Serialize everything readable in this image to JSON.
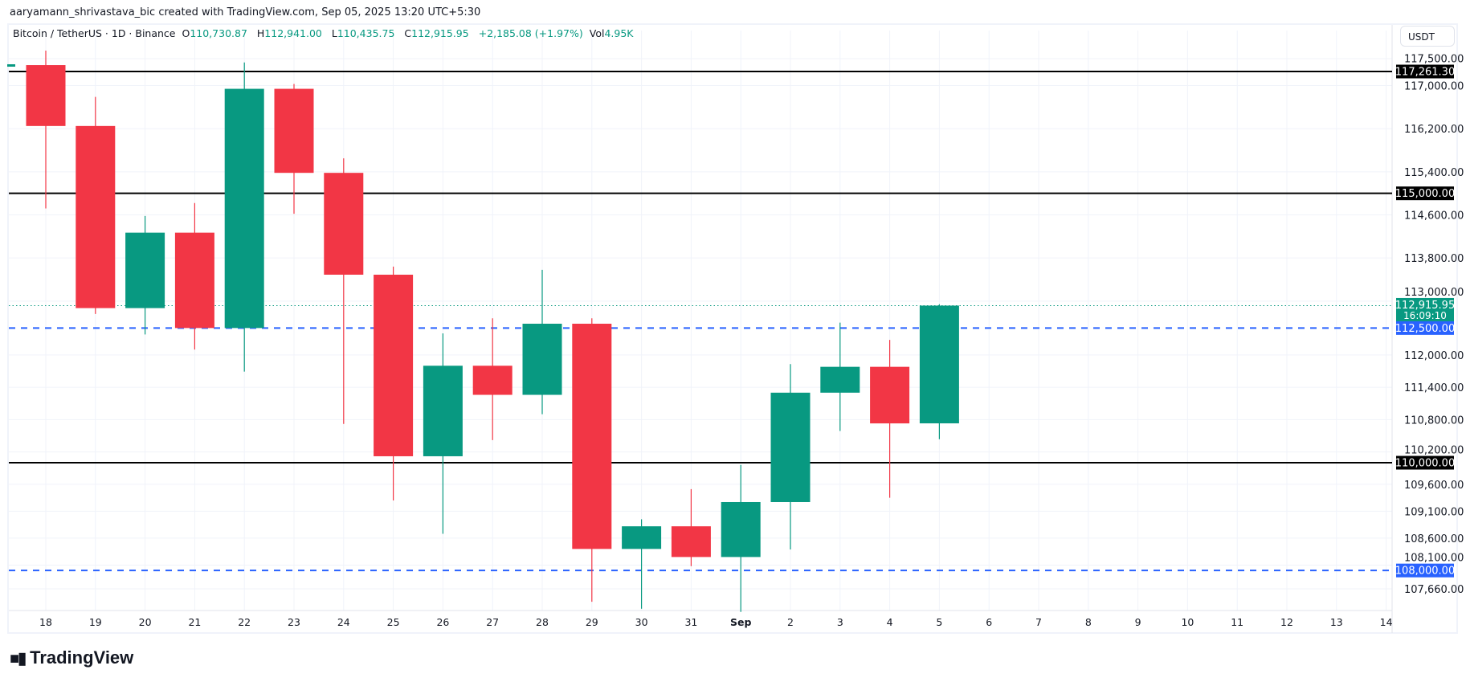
{
  "credit": "aaryamann_shrivastava_bic created with TradingView.com, Sep 05, 2025 13:20 UTC+5:30",
  "legend": {
    "symbol": "Bitcoin / TetherUS · 1D · Binance",
    "o_label": "O",
    "o": "110,730.87",
    "h_label": "H",
    "h": "112,941.00",
    "l_label": "L",
    "l": "110,435.75",
    "c_label": "C",
    "c": "112,915.95",
    "change": "+2,185.08 (+1.97%)",
    "vol_label": "Vol",
    "vol": "4.95K"
  },
  "currency_button": "USDT",
  "countdown": "16:09:10",
  "logo_text": "TradingView",
  "colors": {
    "up": "#089981",
    "down": "#F23645",
    "blue": "#2962FF",
    "level": "#000000",
    "grid": "#f0f3fa"
  },
  "chart_data": {
    "type": "candlestick",
    "x_tick_labels": [
      "18",
      "19",
      "20",
      "21",
      "22",
      "23",
      "24",
      "25",
      "26",
      "27",
      "28",
      "29",
      "30",
      "31",
      "Sep",
      "2",
      "3",
      "4",
      "5",
      "6",
      "7",
      "8",
      "9",
      "10",
      "11",
      "12",
      "13",
      "14"
    ],
    "y_tick_labels": [
      "117,500.00",
      "117,000.00",
      "116,200.00",
      "115,400.00",
      "114,600.00",
      "113,800.00",
      "113,000.00",
      "112,000.00",
      "111,400.00",
      "110,800.00",
      "110,200.00",
      "109,600.00",
      "109,100.00",
      "108,600.00",
      "108,100.00",
      "107,660.00"
    ],
    "y_ticks": [
      117500,
      117000,
      116200,
      115400,
      114600,
      113800,
      113000,
      112000,
      111400,
      110800,
      110200,
      109600,
      109100,
      108600,
      108100,
      107660
    ],
    "ylim": [
      107200,
      117700
    ],
    "grid": true,
    "candles": [
      {
        "date": "Aug 18",
        "o": 117380,
        "h": 117650,
        "l": 114720,
        "c": 116250
      },
      {
        "date": "Aug 19",
        "o": 116250,
        "h": 116790,
        "l": 112760,
        "c": 112870
      },
      {
        "date": "Aug 20",
        "o": 112870,
        "h": 114580,
        "l": 112380,
        "c": 114270
      },
      {
        "date": "Aug 21",
        "o": 114270,
        "h": 114820,
        "l": 112100,
        "c": 112500
      },
      {
        "date": "Aug 22",
        "o": 112500,
        "h": 117430,
        "l": 111690,
        "c": 116940
      },
      {
        "date": "Aug 23",
        "o": 116940,
        "h": 117030,
        "l": 114620,
        "c": 115380
      },
      {
        "date": "Aug 24",
        "o": 115380,
        "h": 115650,
        "l": 110720,
        "c": 113490
      },
      {
        "date": "Aug 25",
        "o": 113490,
        "h": 113640,
        "l": 109300,
        "c": 110120
      },
      {
        "date": "Aug 26",
        "o": 110120,
        "h": 112400,
        "l": 108680,
        "c": 111800
      },
      {
        "date": "Aug 27",
        "o": 111800,
        "h": 112680,
        "l": 110420,
        "c": 111260
      },
      {
        "date": "Aug 28",
        "o": 111260,
        "h": 113580,
        "l": 110900,
        "c": 112580
      },
      {
        "date": "Aug 29",
        "o": 112580,
        "h": 112680,
        "l": 107420,
        "c": 108400
      },
      {
        "date": "Aug 30",
        "o": 108400,
        "h": 108950,
        "l": 107290,
        "c": 108820
      },
      {
        "date": "Aug 31",
        "o": 108820,
        "h": 109510,
        "l": 108080,
        "c": 108250
      },
      {
        "date": "Sep 1",
        "o": 108250,
        "h": 109960,
        "l": 107230,
        "c": 109270
      },
      {
        "date": "Sep 2",
        "o": 109270,
        "h": 111830,
        "l": 108390,
        "c": 111300
      },
      {
        "date": "Sep 3",
        "o": 111300,
        "h": 112600,
        "l": 110590,
        "c": 111780
      },
      {
        "date": "Sep 4",
        "o": 111780,
        "h": 112280,
        "l": 109350,
        "c": 110730
      },
      {
        "date": "Sep 5",
        "o": 110730.87,
        "h": 112941.0,
        "l": 110435.75,
        "c": 112915.95
      }
    ],
    "levels": [
      {
        "price": 117261.3,
        "label": "117,261.30",
        "style": "solid",
        "color": "#000000"
      },
      {
        "price": 115000,
        "label": "115,000.00",
        "style": "solid",
        "color": "#000000"
      },
      {
        "price": 110000,
        "label": "110,000.00",
        "style": "solid",
        "color": "#000000"
      },
      {
        "price": 112500,
        "label": "112,500.00",
        "style": "dashed",
        "color": "#2962FF"
      },
      {
        "price": 108000,
        "label": "108,000.00",
        "style": "dashed",
        "color": "#2962FF"
      }
    ],
    "last_price": {
      "price": 112915.95,
      "label": "112,915.95",
      "color": "#089981"
    }
  }
}
